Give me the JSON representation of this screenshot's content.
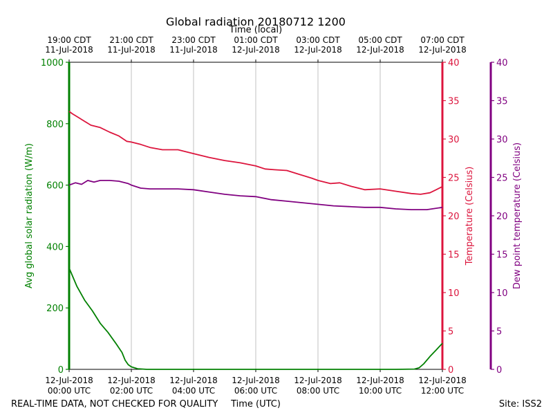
{
  "chart_data": {
    "type": "line",
    "title": "Global radiation 20180712 1200",
    "top_axis_label": "Time (local)",
    "xlabel": "Time (UTC)",
    "footer_left": "REAL-TIME DATA, NOT CHECKED FOR QUALITY",
    "footer_right": "Site: ISS2",
    "xlim": [
      0,
      12
    ],
    "x_unit": "hours since 12-Jul-2018 00:00 UTC",
    "bottom_ticks": [
      {
        "x": 0,
        "line1": "12-Jul-2018",
        "line2": "00:00 UTC"
      },
      {
        "x": 2,
        "line1": "12-Jul-2018",
        "line2": "02:00 UTC"
      },
      {
        "x": 4,
        "line1": "12-Jul-2018",
        "line2": "04:00 UTC"
      },
      {
        "x": 6,
        "line1": "12-Jul-2018",
        "line2": "06:00 UTC"
      },
      {
        "x": 8,
        "line1": "12-Jul-2018",
        "line2": "08:00 UTC"
      },
      {
        "x": 10,
        "line1": "12-Jul-2018",
        "line2": "10:00 UTC"
      },
      {
        "x": 12,
        "line1": "12-Jul-2018",
        "line2": "12:00 UTC"
      }
    ],
    "top_ticks": [
      {
        "x": 0,
        "line1": "19:00 CDT",
        "line2": "11-Jul-2018"
      },
      {
        "x": 2,
        "line1": "21:00 CDT",
        "line2": "11-Jul-2018"
      },
      {
        "x": 4,
        "line1": "23:00 CDT",
        "line2": "11-Jul-2018"
      },
      {
        "x": 6,
        "line1": "01:00 CDT",
        "line2": "12-Jul-2018"
      },
      {
        "x": 8,
        "line1": "03:00 CDT",
        "line2": "12-Jul-2018"
      },
      {
        "x": 10,
        "line1": "05:00 CDT",
        "line2": "12-Jul-2018"
      },
      {
        "x": 12,
        "line1": "07:00 CDT",
        "line2": "12-Jul-2018"
      }
    ],
    "grid_x": true,
    "axes": [
      {
        "id": "radiation",
        "label": "Avg global solar radiation (W/m)",
        "side": "left",
        "color": "#008000",
        "lim": [
          0,
          1000
        ],
        "ticks": [
          0,
          200,
          400,
          600,
          800,
          1000
        ]
      },
      {
        "id": "temperature",
        "label": "Temperature (Celsius)",
        "side": "right",
        "color": "#dc143c",
        "lim": [
          0,
          40
        ],
        "ticks": [
          0,
          5,
          10,
          15,
          20,
          25,
          30,
          35,
          40
        ]
      },
      {
        "id": "dewpoint",
        "label": "Dew point temperature (Celsius)",
        "side": "right-outer",
        "color": "#800080",
        "lim": [
          0,
          40
        ],
        "ticks": [
          0,
          5,
          10,
          15,
          20,
          25,
          30,
          35,
          40
        ]
      }
    ],
    "series": [
      {
        "axis": "radiation",
        "color": "#008000",
        "points": [
          [
            0,
            330
          ],
          [
            0.25,
            270
          ],
          [
            0.5,
            225
          ],
          [
            0.75,
            190
          ],
          [
            1.0,
            150
          ],
          [
            1.25,
            120
          ],
          [
            1.5,
            85
          ],
          [
            1.7,
            55
          ],
          [
            1.8,
            30
          ],
          [
            1.9,
            15
          ],
          [
            2.0,
            8
          ],
          [
            2.2,
            2
          ],
          [
            2.5,
            0
          ],
          [
            5,
            0
          ],
          [
            8,
            0
          ],
          [
            10.5,
            0
          ],
          [
            11.1,
            1
          ],
          [
            11.25,
            5
          ],
          [
            11.4,
            18
          ],
          [
            11.6,
            42
          ],
          [
            11.8,
            63
          ],
          [
            12.0,
            85
          ]
        ]
      },
      {
        "axis": "temperature",
        "color": "#dc143c",
        "points": [
          [
            0,
            33.6
          ],
          [
            0.1,
            33.3
          ],
          [
            0.3,
            32.8
          ],
          [
            0.5,
            32.3
          ],
          [
            0.7,
            31.8
          ],
          [
            1.0,
            31.5
          ],
          [
            1.3,
            30.9
          ],
          [
            1.6,
            30.4
          ],
          [
            1.85,
            29.7
          ],
          [
            2.0,
            29.6
          ],
          [
            2.3,
            29.3
          ],
          [
            2.6,
            28.9
          ],
          [
            3.0,
            28.6
          ],
          [
            3.5,
            28.6
          ],
          [
            4.0,
            28.1
          ],
          [
            4.5,
            27.6
          ],
          [
            5.0,
            27.2
          ],
          [
            5.5,
            26.9
          ],
          [
            6.0,
            26.5
          ],
          [
            6.3,
            26.1
          ],
          [
            6.6,
            26.0
          ],
          [
            7.0,
            25.9
          ],
          [
            7.4,
            25.4
          ],
          [
            7.8,
            24.9
          ],
          [
            8.0,
            24.6
          ],
          [
            8.4,
            24.2
          ],
          [
            8.7,
            24.3
          ],
          [
            9.1,
            23.8
          ],
          [
            9.5,
            23.4
          ],
          [
            10.0,
            23.5
          ],
          [
            10.5,
            23.2
          ],
          [
            11.0,
            22.9
          ],
          [
            11.3,
            22.8
          ],
          [
            11.6,
            23.0
          ],
          [
            11.8,
            23.4
          ],
          [
            12.0,
            23.8
          ]
        ]
      },
      {
        "axis": "dewpoint",
        "color": "#800080",
        "points": [
          [
            0,
            24.0
          ],
          [
            0.2,
            24.3
          ],
          [
            0.4,
            24.1
          ],
          [
            0.6,
            24.6
          ],
          [
            0.8,
            24.4
          ],
          [
            1.0,
            24.6
          ],
          [
            1.3,
            24.6
          ],
          [
            1.6,
            24.5
          ],
          [
            1.9,
            24.2
          ],
          [
            2.0,
            24.0
          ],
          [
            2.3,
            23.6
          ],
          [
            2.6,
            23.5
          ],
          [
            3.0,
            23.5
          ],
          [
            3.5,
            23.5
          ],
          [
            4.0,
            23.4
          ],
          [
            4.5,
            23.1
          ],
          [
            5.0,
            22.8
          ],
          [
            5.5,
            22.6
          ],
          [
            6.0,
            22.5
          ],
          [
            6.5,
            22.1
          ],
          [
            7.0,
            21.9
          ],
          [
            7.5,
            21.7
          ],
          [
            8.0,
            21.5
          ],
          [
            8.5,
            21.3
          ],
          [
            9.0,
            21.2
          ],
          [
            9.5,
            21.1
          ],
          [
            10.0,
            21.1
          ],
          [
            10.5,
            20.9
          ],
          [
            11.0,
            20.8
          ],
          [
            11.5,
            20.8
          ],
          [
            12.0,
            21.1
          ]
        ]
      }
    ]
  }
}
